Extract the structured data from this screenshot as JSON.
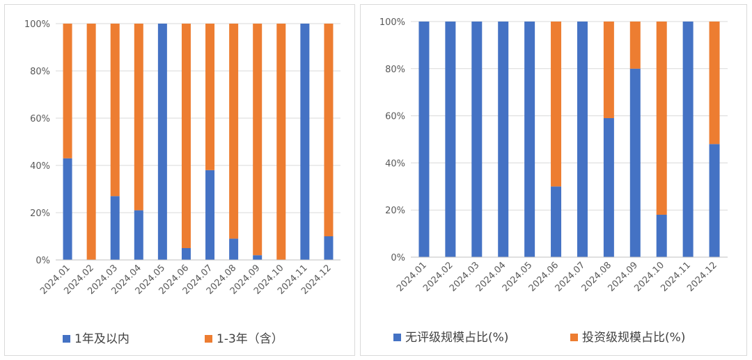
{
  "charts": [
    {
      "chart_data": {
        "type": "bar",
        "stacked": true,
        "normalized": true,
        "categories": [
          "2024.01",
          "2024.02",
          "2024.03",
          "2024.04",
          "2024.05",
          "2024.06",
          "2024.07",
          "2024.08",
          "2024.09",
          "2024.10",
          "2024.11",
          "2024.12"
        ],
        "series": [
          {
            "name": "1年及以内",
            "color": "#4472c4",
            "values": [
              43,
              0,
              27,
              21,
              100,
              5,
              38,
              9,
              2,
              0,
              100,
              10
            ]
          },
          {
            "name": "1-3年（含）",
            "color": "#ed7d31",
            "values": [
              57,
              100,
              73,
              79,
              0,
              95,
              62,
              91,
              98,
              100,
              0,
              90
            ]
          }
        ],
        "y_ticks": [
          "0%",
          "20%",
          "40%",
          "60%",
          "80%",
          "100%"
        ],
        "ylim": [
          0,
          100
        ],
        "grid": true,
        "legend": "bottom"
      }
    },
    {
      "chart_data": {
        "type": "bar",
        "stacked": true,
        "normalized": true,
        "categories": [
          "2024.01",
          "2024.02",
          "2024.03",
          "2024.04",
          "2024.05",
          "2024.06",
          "2024.07",
          "2024.08",
          "2024.09",
          "2024.10",
          "2024.11",
          "2024.12"
        ],
        "series": [
          {
            "name": "无评级规模占比(%)",
            "color": "#4472c4",
            "values": [
              100,
              100,
              100,
              100,
              100,
              30,
              100,
              59,
              80,
              18,
              100,
              48
            ]
          },
          {
            "name": "投资级规模占比(%)",
            "color": "#ed7d31",
            "values": [
              0,
              0,
              0,
              0,
              0,
              70,
              0,
              41,
              20,
              82,
              0,
              52
            ]
          }
        ],
        "y_ticks": [
          "0%",
          "20%",
          "40%",
          "60%",
          "80%",
          "100%"
        ],
        "ylim": [
          0,
          100
        ],
        "grid": true,
        "legend": "bottom"
      }
    }
  ]
}
